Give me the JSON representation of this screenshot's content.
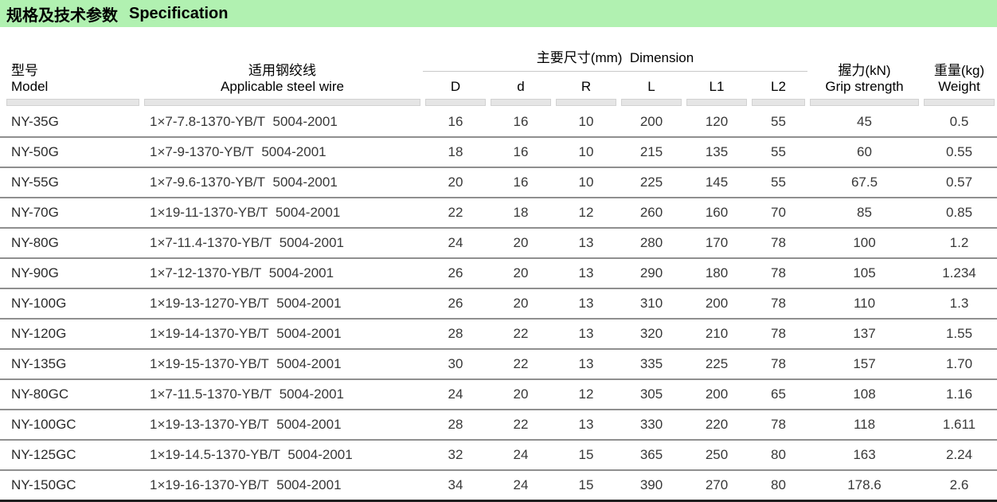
{
  "title_bar": {
    "title_zh": "规格及技术参数",
    "title_en": "Specification"
  },
  "colors": {
    "title_bar_bg": "#b1f1b1",
    "row_divider": "#8f8f8f",
    "column_bar": "#e5e5e5",
    "bottom_border": "#1f1f1f"
  },
  "table": {
    "headers": {
      "model_zh": "型号",
      "model_en": "Model",
      "wire_zh": "适用钢绞线",
      "wire_en": "Applicable steel wire",
      "dimension_group": "主要尺寸(mm)  Dimension",
      "dims": [
        "D",
        "d",
        "R",
        "L",
        "L1",
        "L2"
      ],
      "grip_zh": "握力(kN)",
      "grip_en": "Grip strength",
      "weight_zh": "重量(kg)",
      "weight_en": "Weight"
    },
    "column_keys": [
      "model",
      "wire",
      "D",
      "d",
      "R",
      "L",
      "L1",
      "L2",
      "grip",
      "weight"
    ],
    "rows": [
      {
        "model": "NY-35G",
        "wire": "1×7-7.8-1370-YB/T  5004-2001",
        "D": "16",
        "d": "16",
        "R": "10",
        "L": "200",
        "L1": "120",
        "L2": "55",
        "grip": "45",
        "weight": "0.5"
      },
      {
        "model": "NY-50G",
        "wire": "1×7-9-1370-YB/T  5004-2001",
        "D": "18",
        "d": "16",
        "R": "10",
        "L": "215",
        "L1": "135",
        "L2": "55",
        "grip": "60",
        "weight": "0.55"
      },
      {
        "model": "NY-55G",
        "wire": "1×7-9.6-1370-YB/T  5004-2001",
        "D": "20",
        "d": "16",
        "R": "10",
        "L": "225",
        "L1": "145",
        "L2": "55",
        "grip": "67.5",
        "weight": "0.57"
      },
      {
        "model": "NY-70G",
        "wire": "1×19-11-1370-YB/T  5004-2001",
        "D": "22",
        "d": "18",
        "R": "12",
        "L": "260",
        "L1": "160",
        "L2": "70",
        "grip": "85",
        "weight": "0.85"
      },
      {
        "model": "NY-80G",
        "wire": "1×7-11.4-1370-YB/T  5004-2001",
        "D": "24",
        "d": "20",
        "R": "13",
        "L": "280",
        "L1": "170",
        "L2": "78",
        "grip": "100",
        "weight": "1.2"
      },
      {
        "model": "NY-90G",
        "wire": "1×7-12-1370-YB/T  5004-2001",
        "D": "26",
        "d": "20",
        "R": "13",
        "L": "290",
        "L1": "180",
        "L2": "78",
        "grip": "105",
        "weight": "1.234"
      },
      {
        "model": "NY-100G",
        "wire": "1×19-13-1270-YB/T  5004-2001",
        "D": "26",
        "d": "20",
        "R": "13",
        "L": "310",
        "L1": "200",
        "L2": "78",
        "grip": "110",
        "weight": "1.3"
      },
      {
        "model": "NY-120G",
        "wire": "1×19-14-1370-YB/T  5004-2001",
        "D": "28",
        "d": "22",
        "R": "13",
        "L": "320",
        "L1": "210",
        "L2": "78",
        "grip": "137",
        "weight": "1.55"
      },
      {
        "model": "NY-135G",
        "wire": "1×19-15-1370-YB/T  5004-2001",
        "D": "30",
        "d": "22",
        "R": "13",
        "L": "335",
        "L1": "225",
        "L2": "78",
        "grip": "157",
        "weight": "1.70"
      },
      {
        "model": "NY-80GC",
        "wire": "1×7-11.5-1370-YB/T  5004-2001",
        "D": "24",
        "d": "20",
        "R": "12",
        "L": "305",
        "L1": "200",
        "L2": "65",
        "grip": "108",
        "weight": "1.16"
      },
      {
        "model": "NY-100GC",
        "wire": "1×19-13-1370-YB/T  5004-2001",
        "D": "28",
        "d": "22",
        "R": "13",
        "L": "330",
        "L1": "220",
        "L2": "78",
        "grip": "118",
        "weight": "1.611"
      },
      {
        "model": "NY-125GC",
        "wire": "1×19-14.5-1370-YB/T  5004-2001",
        "D": "32",
        "d": "24",
        "R": "15",
        "L": "365",
        "L1": "250",
        "L2": "80",
        "grip": "163",
        "weight": "2.24"
      },
      {
        "model": "NY-150GC",
        "wire": "1×19-16-1370-YB/T  5004-2001",
        "D": "34",
        "d": "24",
        "R": "15",
        "L": "390",
        "L1": "270",
        "L2": "80",
        "grip": "178.6",
        "weight": "2.6"
      }
    ]
  }
}
